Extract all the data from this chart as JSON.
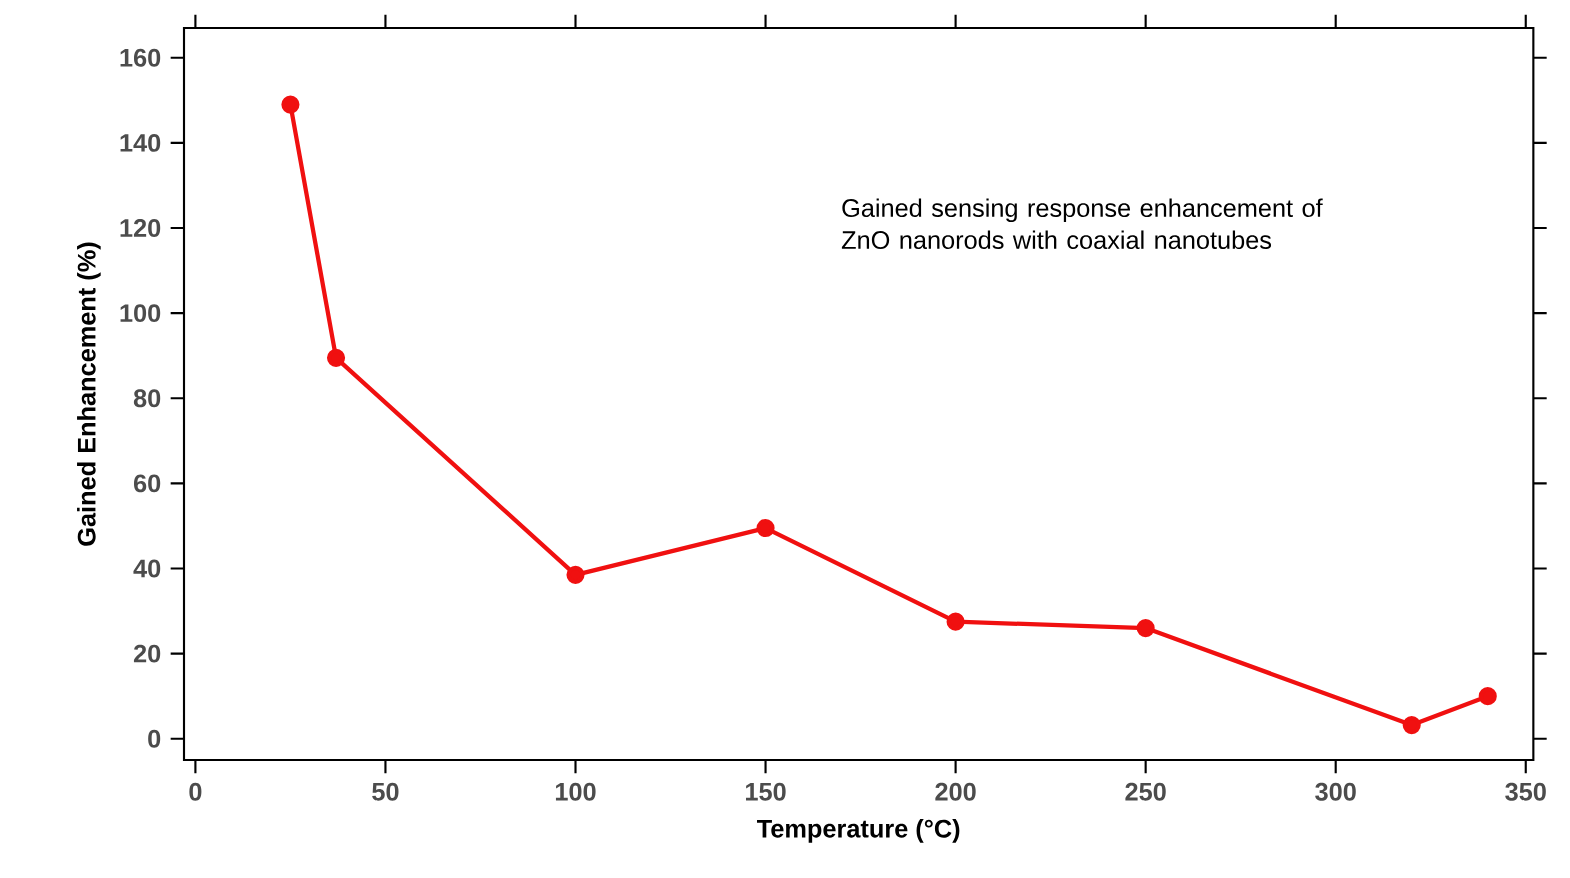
{
  "chart_data": {
    "type": "line",
    "xlabel": "Temperature (°C)",
    "ylabel": "Gained Enhancement (%)",
    "annotations": [
      "Gained sensing response enhancement of ZnO nanorods with coaxial nanotubes"
    ],
    "x": [
      25,
      37,
      100,
      150,
      200,
      250,
      320,
      340
    ],
    "series": [
      {
        "color": "#f01010",
        "values": [
          149,
          89.5,
          38.5,
          49.5,
          27.5,
          26,
          3.2,
          10
        ]
      }
    ],
    "xlim": [
      -3,
      352
    ],
    "ylim": [
      -5,
      167
    ],
    "xticks": [
      0,
      50,
      100,
      150,
      200,
      250,
      300,
      350
    ],
    "yticks": [
      0,
      20,
      40,
      60,
      80,
      100,
      120,
      140,
      160
    ],
    "marker": "circle",
    "line_style": "solid",
    "grid": false
  }
}
